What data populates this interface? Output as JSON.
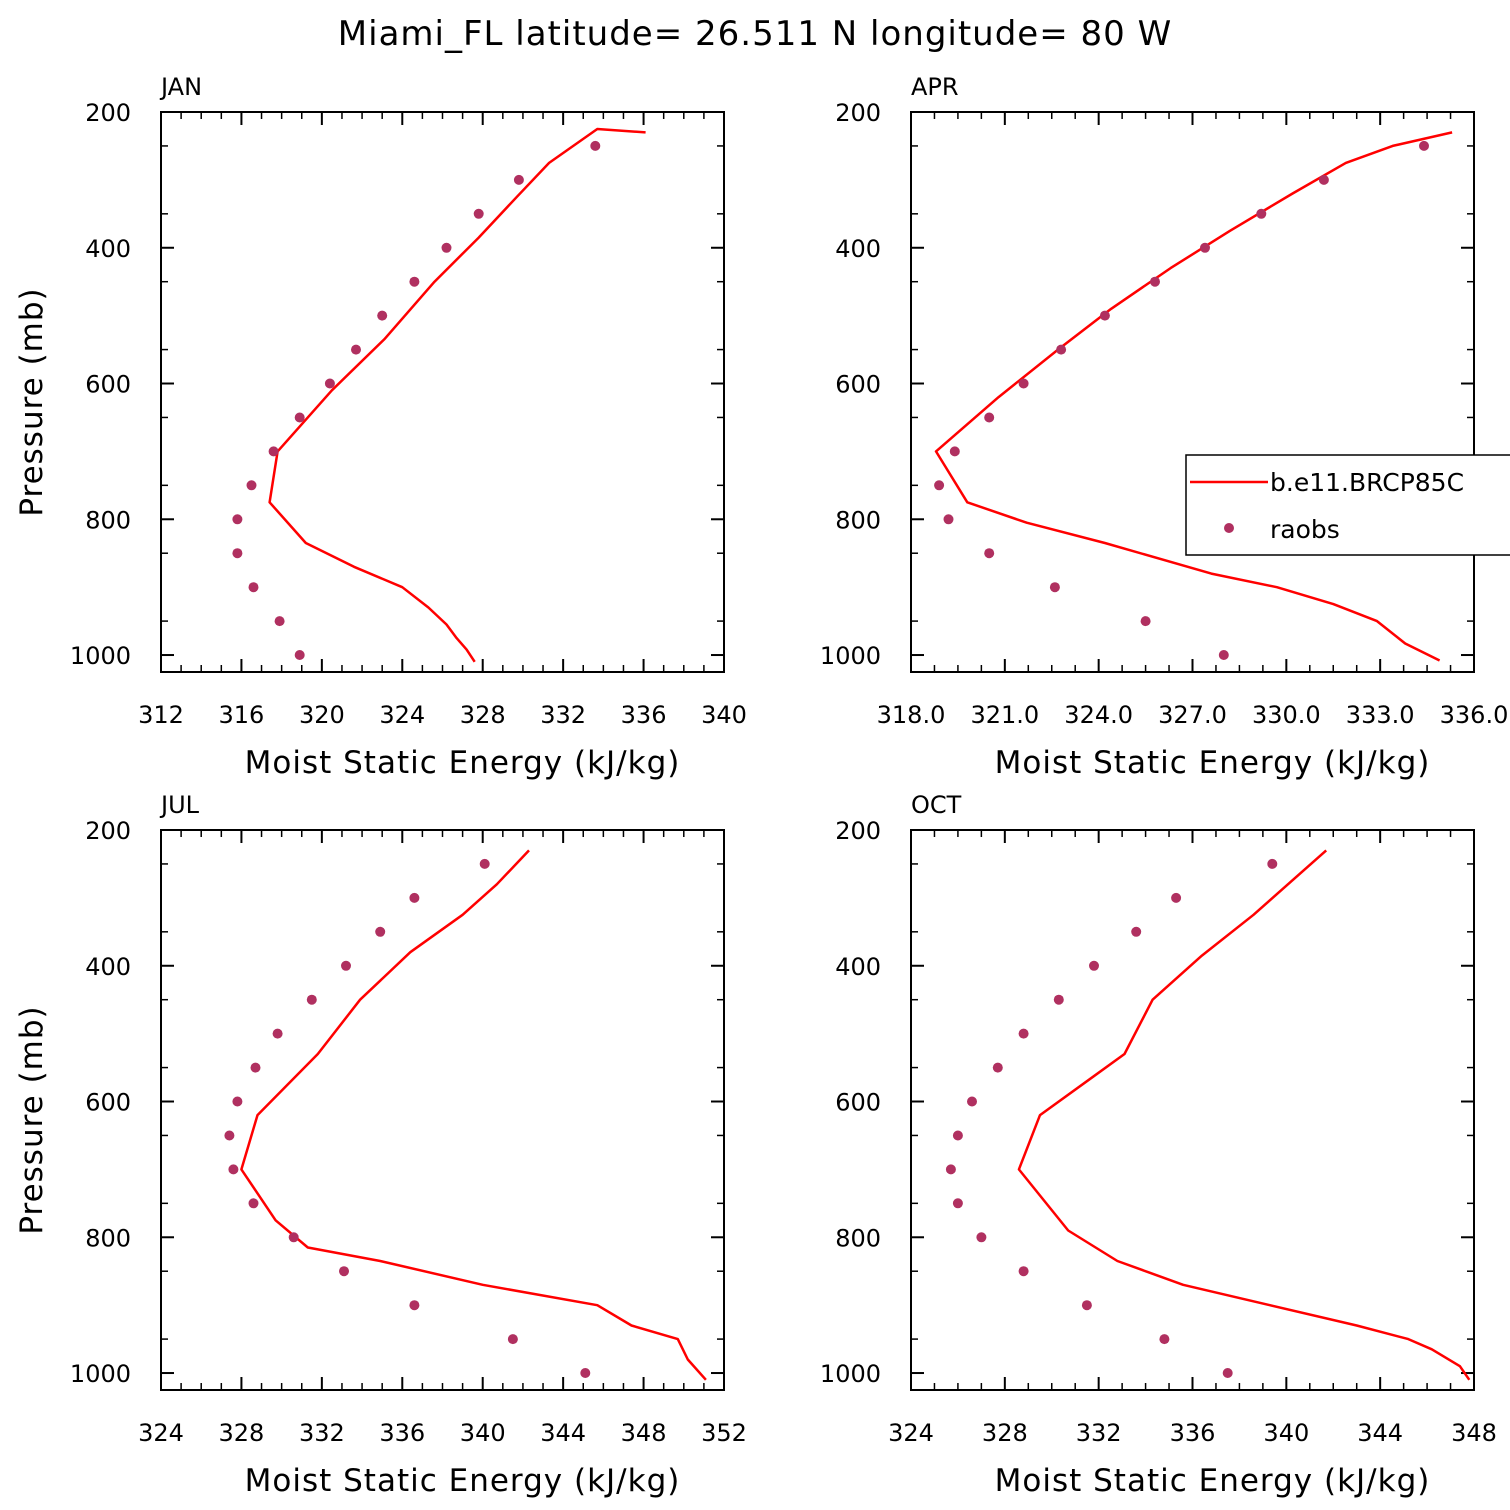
{
  "title": "Miami_FL  latitude= 26.511 N longitude= 80 W",
  "colors": {
    "model": "#ff0000",
    "obs": "#b03060",
    "axis": "#000000"
  },
  "legend": {
    "placement": "center-right of APR panel",
    "model_label": "b.e11.BRCP85C",
    "obs_label": "raobs"
  },
  "chart_data": [
    {
      "type": "line",
      "panel_title": "JAN",
      "xlabel": "Moist Static Energy (kJ/kg)",
      "ylabel": "Pressure (mb)",
      "xlim": [
        312,
        340
      ],
      "xticks": [
        "312",
        "316",
        "320",
        "324",
        "328",
        "332",
        "336",
        "340"
      ],
      "ylim": [
        200,
        1025
      ],
      "y_reversed": true,
      "yticks": [
        "200",
        "400",
        "600",
        "800",
        "1000"
      ],
      "series": [
        {
          "name": "b.e11.BRCP85C",
          "kind": "line",
          "x": [
            327.6,
            327.2,
            326.7,
            326.2,
            325.3,
            324.0,
            321.6,
            319.2,
            317.4,
            317.8,
            320.5,
            323.1,
            325.6,
            327.8,
            329.7,
            331.3,
            333.7,
            336.1
          ],
          "y": [
            1010,
            992,
            975,
            955,
            930,
            900,
            870,
            835,
            775,
            700,
            610,
            535,
            450,
            385,
            325,
            275,
            225,
            230
          ]
        },
        {
          "name": "raobs",
          "kind": "scatter",
          "x": [
            318.9,
            317.9,
            316.6,
            315.8,
            315.8,
            316.5,
            317.6,
            318.9,
            320.4,
            321.7,
            323.0,
            324.6,
            326.2,
            327.8,
            329.8,
            333.6
          ],
          "y": [
            1000,
            950,
            900,
            850,
            800,
            750,
            700,
            650,
            600,
            550,
            500,
            450,
            400,
            350,
            300,
            250
          ]
        }
      ]
    },
    {
      "type": "line",
      "panel_title": "APR",
      "xlabel": "Moist Static Energy (kJ/kg)",
      "ylabel": "",
      "xlim": [
        318,
        336
      ],
      "xticks": [
        "318.0",
        "321.0",
        "324.0",
        "327.0",
        "330.0",
        "333.0",
        "336.0"
      ],
      "ylim": [
        200,
        1025
      ],
      "y_reversed": true,
      "yticks": [
        "200",
        "400",
        "600",
        "800",
        "1000"
      ],
      "series": [
        {
          "name": "b.e11.BRCP85C",
          "kind": "line",
          "x": [
            334.9,
            333.8,
            332.9,
            331.5,
            329.7,
            327.6,
            324.2,
            321.7,
            319.8,
            318.8,
            320.8,
            322.7,
            324.4,
            326.3,
            328.2,
            330.2,
            331.9,
            333.4,
            335.3
          ],
          "y": [
            1008,
            983,
            950,
            925,
            900,
            880,
            835,
            805,
            775,
            700,
            620,
            550,
            490,
            430,
            375,
            320,
            275,
            250,
            230
          ]
        },
        {
          "name": "raobs",
          "kind": "scatter",
          "x": [
            328.0,
            325.5,
            322.6,
            320.5,
            319.2,
            318.9,
            319.4,
            320.5,
            321.6,
            322.8,
            324.2,
            325.8,
            327.4,
            329.2,
            331.2,
            334.4
          ],
          "y": [
            1000,
            950,
            900,
            850,
            800,
            750,
            700,
            650,
            600,
            550,
            500,
            450,
            400,
            350,
            300,
            250
          ]
        }
      ]
    },
    {
      "type": "line",
      "panel_title": "JUL",
      "xlabel": "Moist Static Energy (kJ/kg)",
      "ylabel": "Pressure (mb)",
      "xlim": [
        324,
        352
      ],
      "xticks": [
        "324",
        "328",
        "332",
        "336",
        "340",
        "344",
        "348",
        "352"
      ],
      "ylim": [
        200,
        1025
      ],
      "y_reversed": true,
      "yticks": [
        "200",
        "400",
        "600",
        "800",
        "1000"
      ],
      "series": [
        {
          "name": "b.e11.BRCP85C",
          "kind": "line",
          "x": [
            351.1,
            350.2,
            349.7,
            347.4,
            345.7,
            340.0,
            334.9,
            331.3,
            329.7,
            328.0,
            328.8,
            331.8,
            333.9,
            336.4,
            339.0,
            340.7,
            342.3
          ],
          "y": [
            1010,
            980,
            950,
            930,
            900,
            870,
            835,
            815,
            775,
            700,
            620,
            530,
            450,
            380,
            325,
            280,
            230
          ]
        },
        {
          "name": "raobs",
          "kind": "scatter",
          "x": [
            345.1,
            341.5,
            336.6,
            333.1,
            330.6,
            328.6,
            327.6,
            327.4,
            327.8,
            328.7,
            329.8,
            331.5,
            333.2,
            334.9,
            336.6,
            340.1
          ],
          "y": [
            1000,
            950,
            900,
            850,
            800,
            750,
            700,
            650,
            600,
            550,
            500,
            450,
            400,
            350,
            300,
            250
          ]
        }
      ]
    },
    {
      "type": "line",
      "panel_title": "OCT",
      "xlabel": "Moist Static Energy (kJ/kg)",
      "ylabel": "",
      "xlim": [
        324,
        348
      ],
      "xticks": [
        "324",
        "328",
        "332",
        "336",
        "340",
        "344",
        "348"
      ],
      "ylim": [
        200,
        1025
      ],
      "y_reversed": true,
      "yticks": [
        "200",
        "400",
        "600",
        "800",
        "1000"
      ],
      "series": [
        {
          "name": "b.e11.BRCP85C",
          "kind": "line",
          "x": [
            347.8,
            347.4,
            346.2,
            345.2,
            343.0,
            339.3,
            335.6,
            332.8,
            330.7,
            328.6,
            329.5,
            331.7,
            333.1,
            334.3,
            336.4,
            338.6,
            341.7
          ],
          "y": [
            1010,
            990,
            965,
            950,
            930,
            900,
            870,
            835,
            790,
            700,
            620,
            565,
            530,
            450,
            385,
            325,
            230
          ]
        },
        {
          "name": "raobs",
          "kind": "scatter",
          "x": [
            337.5,
            334.8,
            331.5,
            328.8,
            327.0,
            326.0,
            325.7,
            326.0,
            326.6,
            327.7,
            328.8,
            330.3,
            331.8,
            333.6,
            335.3,
            339.4
          ],
          "y": [
            1000,
            950,
            900,
            850,
            800,
            750,
            700,
            650,
            600,
            550,
            500,
            450,
            400,
            350,
            300,
            250
          ]
        }
      ]
    }
  ]
}
